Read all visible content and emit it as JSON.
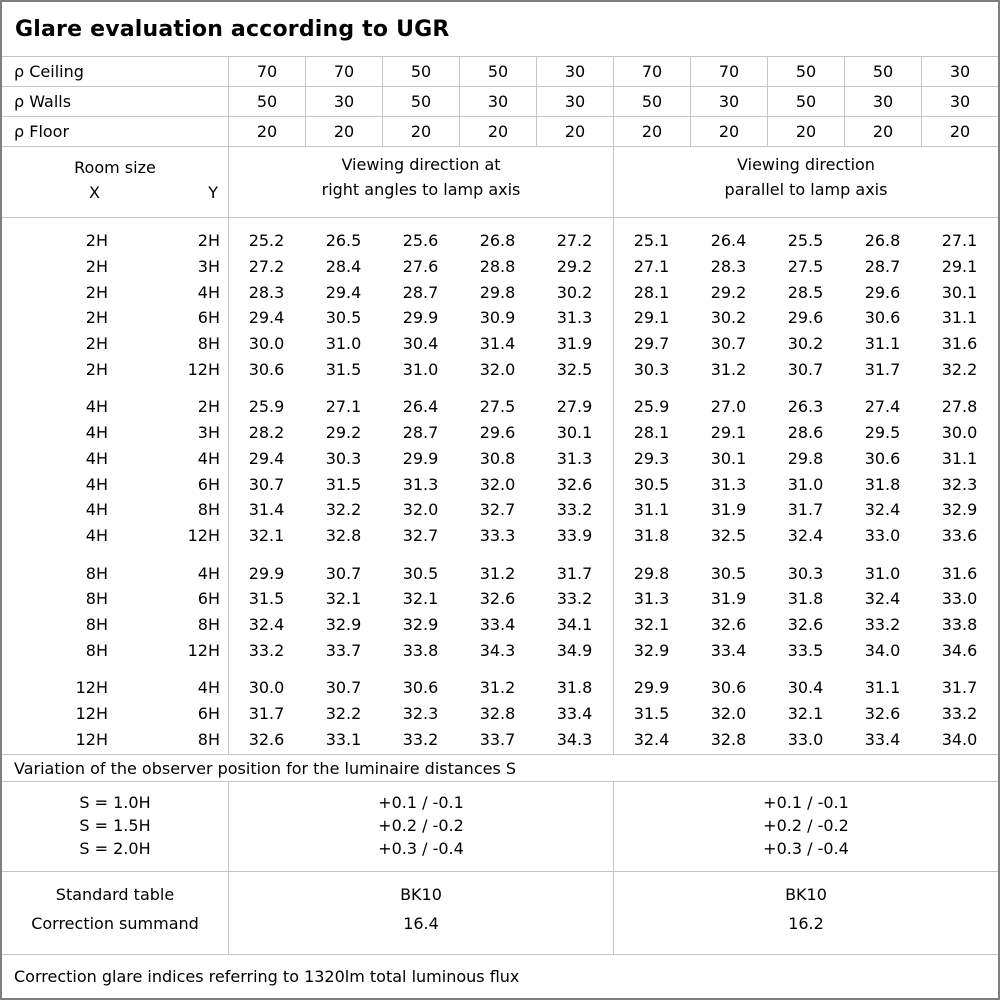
{
  "title": "Glare evaluation according to UGR",
  "colors": {
    "grid_line": "#c6c6c6",
    "outer_border": "#7f7f7f",
    "text": "#000000",
    "background": "#ffffff"
  },
  "reflectance_rows": [
    {
      "label": "ρ Ceiling",
      "values": [
        "70",
        "70",
        "50",
        "50",
        "30",
        "70",
        "70",
        "50",
        "50",
        "30"
      ]
    },
    {
      "label": "ρ Walls",
      "values": [
        "50",
        "30",
        "50",
        "30",
        "30",
        "50",
        "30",
        "50",
        "30",
        "30"
      ]
    },
    {
      "label": "ρ Floor",
      "values": [
        "20",
        "20",
        "20",
        "20",
        "20",
        "20",
        "20",
        "20",
        "20",
        "20"
      ]
    }
  ],
  "header": {
    "room_size_label": "Room size",
    "x_label": "X",
    "y_label": "Y",
    "group1_line1": "Viewing direction at",
    "group1_line2": "right angles to lamp axis",
    "group2_line1": "Viewing direction",
    "group2_line2": "parallel to lamp axis"
  },
  "body": {
    "groups": [
      {
        "rows": [
          {
            "x": "2H",
            "y": "2H",
            "values": [
              "25.2",
              "26.5",
              "25.6",
              "26.8",
              "27.2",
              "25.1",
              "26.4",
              "25.5",
              "26.8",
              "27.1"
            ]
          },
          {
            "x": "2H",
            "y": "3H",
            "values": [
              "27.2",
              "28.4",
              "27.6",
              "28.8",
              "29.2",
              "27.1",
              "28.3",
              "27.5",
              "28.7",
              "29.1"
            ]
          },
          {
            "x": "2H",
            "y": "4H",
            "values": [
              "28.3",
              "29.4",
              "28.7",
              "29.8",
              "30.2",
              "28.1",
              "29.2",
              "28.5",
              "29.6",
              "30.1"
            ]
          },
          {
            "x": "2H",
            "y": "6H",
            "values": [
              "29.4",
              "30.5",
              "29.9",
              "30.9",
              "31.3",
              "29.1",
              "30.2",
              "29.6",
              "30.6",
              "31.1"
            ]
          },
          {
            "x": "2H",
            "y": "8H",
            "values": [
              "30.0",
              "31.0",
              "30.4",
              "31.4",
              "31.9",
              "29.7",
              "30.7",
              "30.2",
              "31.1",
              "31.6"
            ]
          },
          {
            "x": "2H",
            "y": "12H",
            "values": [
              "30.6",
              "31.5",
              "31.0",
              "32.0",
              "32.5",
              "30.3",
              "31.2",
              "30.7",
              "31.7",
              "32.2"
            ]
          }
        ]
      },
      {
        "rows": [
          {
            "x": "4H",
            "y": "2H",
            "values": [
              "25.9",
              "27.1",
              "26.4",
              "27.5",
              "27.9",
              "25.9",
              "27.0",
              "26.3",
              "27.4",
              "27.8"
            ]
          },
          {
            "x": "4H",
            "y": "3H",
            "values": [
              "28.2",
              "29.2",
              "28.7",
              "29.6",
              "30.1",
              "28.1",
              "29.1",
              "28.6",
              "29.5",
              "30.0"
            ]
          },
          {
            "x": "4H",
            "y": "4H",
            "values": [
              "29.4",
              "30.3",
              "29.9",
              "30.8",
              "31.3",
              "29.3",
              "30.1",
              "29.8",
              "30.6",
              "31.1"
            ]
          },
          {
            "x": "4H",
            "y": "6H",
            "values": [
              "30.7",
              "31.5",
              "31.3",
              "32.0",
              "32.6",
              "30.5",
              "31.3",
              "31.0",
              "31.8",
              "32.3"
            ]
          },
          {
            "x": "4H",
            "y": "8H",
            "values": [
              "31.4",
              "32.2",
              "32.0",
              "32.7",
              "33.2",
              "31.1",
              "31.9",
              "31.7",
              "32.4",
              "32.9"
            ]
          },
          {
            "x": "4H",
            "y": "12H",
            "values": [
              "32.1",
              "32.8",
              "32.7",
              "33.3",
              "33.9",
              "31.8",
              "32.5",
              "32.4",
              "33.0",
              "33.6"
            ]
          }
        ]
      },
      {
        "rows": [
          {
            "x": "8H",
            "y": "4H",
            "values": [
              "29.9",
              "30.7",
              "30.5",
              "31.2",
              "31.7",
              "29.8",
              "30.5",
              "30.3",
              "31.0",
              "31.6"
            ]
          },
          {
            "x": "8H",
            "y": "6H",
            "values": [
              "31.5",
              "32.1",
              "32.1",
              "32.6",
              "33.2",
              "31.3",
              "31.9",
              "31.8",
              "32.4",
              "33.0"
            ]
          },
          {
            "x": "8H",
            "y": "8H",
            "values": [
              "32.4",
              "32.9",
              "32.9",
              "33.4",
              "34.1",
              "32.1",
              "32.6",
              "32.6",
              "33.2",
              "33.8"
            ]
          },
          {
            "x": "8H",
            "y": "12H",
            "values": [
              "33.2",
              "33.7",
              "33.8",
              "34.3",
              "34.9",
              "32.9",
              "33.4",
              "33.5",
              "34.0",
              "34.6"
            ]
          }
        ]
      },
      {
        "rows": [
          {
            "x": "12H",
            "y": "4H",
            "values": [
              "30.0",
              "30.7",
              "30.6",
              "31.2",
              "31.8",
              "29.9",
              "30.6",
              "30.4",
              "31.1",
              "31.7"
            ]
          },
          {
            "x": "12H",
            "y": "6H",
            "values": [
              "31.7",
              "32.2",
              "32.3",
              "32.8",
              "33.4",
              "31.5",
              "32.0",
              "32.1",
              "32.6",
              "33.2"
            ]
          },
          {
            "x": "12H",
            "y": "8H",
            "values": [
              "32.6",
              "33.1",
              "33.2",
              "33.7",
              "34.3",
              "32.4",
              "32.8",
              "33.0",
              "33.4",
              "34.0"
            ]
          }
        ]
      }
    ]
  },
  "variation": {
    "title": "Variation of the observer position for the luminaire distances S",
    "rows": [
      {
        "label": "S = 1.0H",
        "right_angle": "+0.1 / -0.1",
        "parallel": "+0.1 / -0.1"
      },
      {
        "label": "S = 1.5H",
        "right_angle": "+0.2 / -0.2",
        "parallel": "+0.2 / -0.2"
      },
      {
        "label": "S = 2.0H",
        "right_angle": "+0.3 / -0.4",
        "parallel": "+0.3 / -0.4"
      }
    ]
  },
  "standard": {
    "row_label_1": "Standard table",
    "row_label_2": "Correction summand",
    "right_angle": {
      "table_name": "BK10",
      "summand": "16.4"
    },
    "parallel": {
      "table_name": "BK10",
      "summand": "16.2"
    }
  },
  "footer": {
    "note": "Correction glare indices referring to 1320lm total luminous flux"
  }
}
